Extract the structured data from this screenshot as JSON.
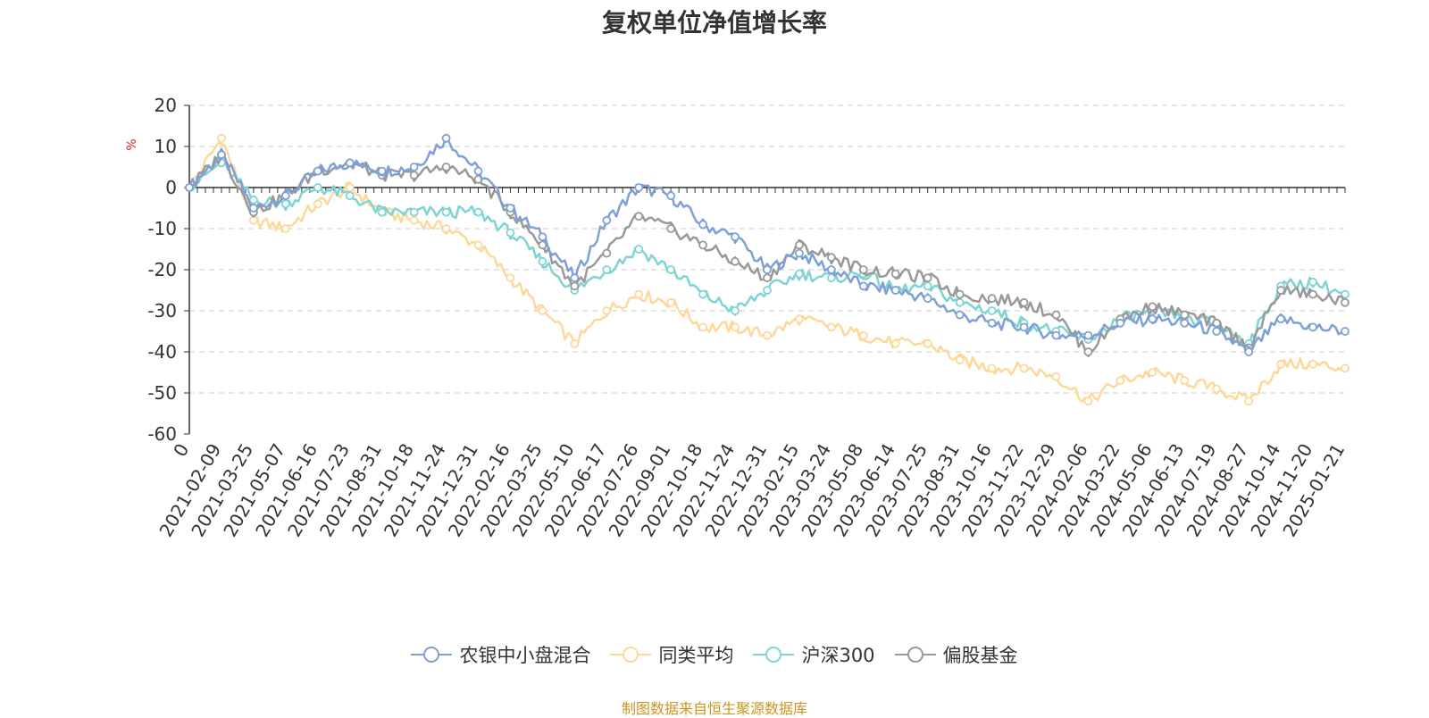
{
  "chart_data": {
    "type": "line",
    "title": "复权单位净值增长率",
    "ylabel": "%",
    "xlabel": "",
    "ylim": [
      -60,
      20
    ],
    "yticks": [
      20,
      10,
      0,
      -10,
      -20,
      -30,
      -40,
      -50,
      -60
    ],
    "grid": true,
    "legend_position": "bottom",
    "categories": [
      "0",
      "2021-02-09",
      "2021-03-25",
      "2021-05-07",
      "2021-06-16",
      "2021-07-23",
      "2021-08-31",
      "2021-10-18",
      "2021-11-24",
      "2021-12-31",
      "2022-02-16",
      "2022-03-25",
      "2022-05-10",
      "2022-06-17",
      "2022-07-26",
      "2022-09-01",
      "2022-10-18",
      "2022-11-24",
      "2022-12-31",
      "2023-02-15",
      "2023-03-24",
      "2023-05-08",
      "2023-06-14",
      "2023-07-25",
      "2023-08-31",
      "2023-10-16",
      "2023-11-22",
      "2023-12-29",
      "2024-02-06",
      "2024-03-22",
      "2024-05-06",
      "2024-06-13",
      "2024-07-19",
      "2024-08-27",
      "2024-10-14",
      "2024-11-20",
      "2025-01-21"
    ],
    "series": [
      {
        "name": "农银中小盘混合",
        "color": "#7fa0d6",
        "values": [
          0,
          8,
          -5,
          -2,
          4,
          6,
          4,
          5,
          12,
          4,
          -5,
          -12,
          -22,
          -8,
          0,
          -2,
          -9,
          -12,
          -20,
          -16,
          -20,
          -24,
          -25,
          -27,
          -31,
          -33,
          -34,
          -36,
          -36,
          -33,
          -32,
          -33,
          -35,
          -40,
          -32,
          -34,
          -35
        ]
      },
      {
        "name": "同类平均",
        "color": "#fdd898",
        "values": [
          0,
          12,
          -8,
          -10,
          -4,
          0,
          -6,
          -8,
          -10,
          -14,
          -22,
          -30,
          -38,
          -30,
          -26,
          -28,
          -34,
          -34,
          -36,
          -32,
          -34,
          -36,
          -38,
          -38,
          -42,
          -44,
          -44,
          -46,
          -52,
          -47,
          -45,
          -47,
          -49,
          -52,
          -43,
          -43,
          -44
        ]
      },
      {
        "name": "沪深300",
        "color": "#7ed4d4",
        "values": [
          0,
          6,
          -3,
          -4,
          0,
          -2,
          -6,
          -6,
          -6,
          -6,
          -11,
          -18,
          -25,
          -20,
          -15,
          -20,
          -26,
          -30,
          -25,
          -21,
          -22,
          -21,
          -25,
          -24,
          -28,
          -30,
          -33,
          -35,
          -37,
          -32,
          -30,
          -32,
          -33,
          -38,
          -24,
          -23,
          -26
        ]
      },
      {
        "name": "偏股基金",
        "color": "#999999",
        "values": [
          0,
          8,
          -6,
          -2,
          4,
          6,
          3,
          3,
          5,
          2,
          -6,
          -14,
          -24,
          -16,
          -7,
          -10,
          -14,
          -18,
          -22,
          -14,
          -17,
          -20,
          -21,
          -22,
          -26,
          -27,
          -28,
          -31,
          -40,
          -32,
          -29,
          -31,
          -33,
          -39,
          -25,
          -26,
          -28
        ]
      }
    ],
    "source_note": "制图数据来自恒生聚源数据库"
  }
}
